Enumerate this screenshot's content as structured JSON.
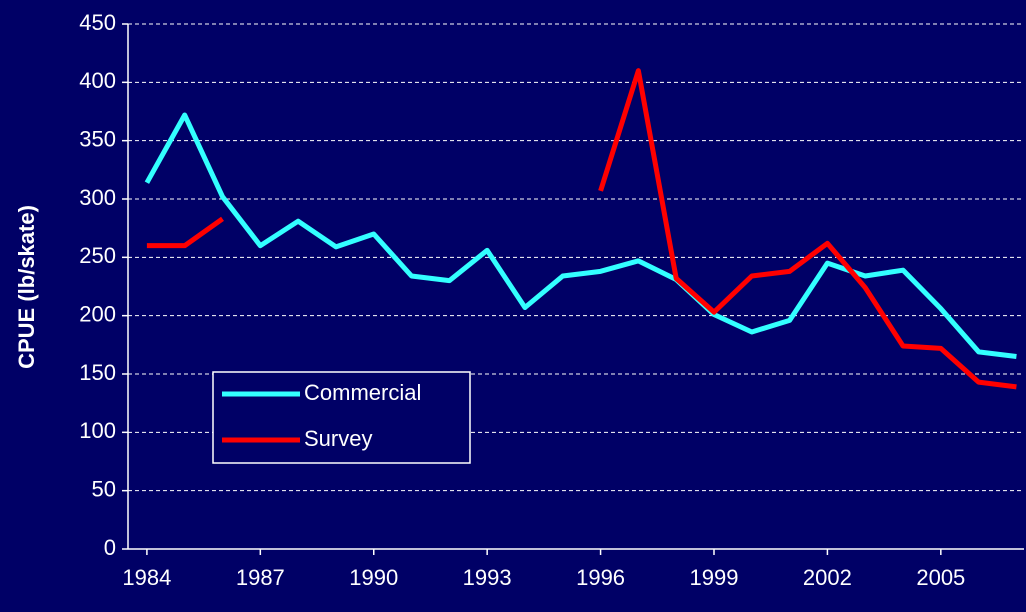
{
  "chart_data": {
    "type": "line",
    "ylabel": "CPUE (lb/skate)",
    "x": [
      1984,
      1985,
      1986,
      1987,
      1988,
      1989,
      1990,
      1991,
      1992,
      1993,
      1994,
      1995,
      1996,
      1997,
      1998,
      1999,
      2000,
      2001,
      2002,
      2003,
      2004,
      2005,
      2006,
      2007
    ],
    "series": [
      {
        "name": "Commercial",
        "color": "#33ffff",
        "values": [
          314,
          372,
          302,
          260,
          281,
          259,
          270,
          234,
          230,
          256,
          207,
          234,
          238,
          247,
          231,
          201,
          186,
          196,
          245,
          234,
          239,
          206,
          169,
          165
        ]
      },
      {
        "name": "Survey",
        "color": "#ff0000",
        "values": [
          260,
          260,
          283,
          null,
          null,
          null,
          null,
          null,
          null,
          null,
          null,
          null,
          307,
          410,
          232,
          203,
          234,
          238,
          262,
          224,
          174,
          172,
          143,
          139
        ]
      }
    ],
    "xlim": [
      1983.5,
      2007.2
    ],
    "xticks": [
      1984,
      1987,
      1990,
      1993,
      1996,
      1999,
      2002,
      2005
    ],
    "ylim": [
      0,
      450
    ],
    "yticks": [
      0,
      50,
      100,
      150,
      200,
      250,
      300,
      350,
      400,
      450
    ],
    "grid": true
  }
}
